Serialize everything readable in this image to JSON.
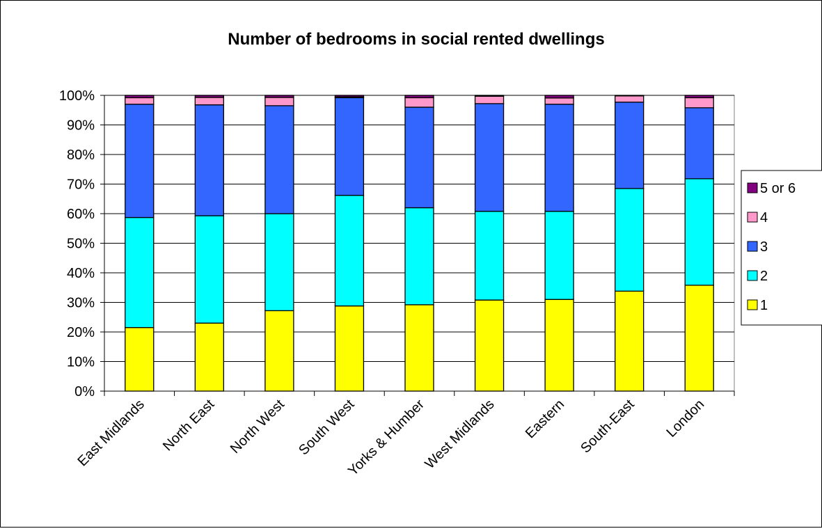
{
  "chart_data": {
    "type": "bar",
    "stacked": "percent",
    "title": "Number of bedrooms in social rented dwellings",
    "xlabel": "",
    "ylabel": "",
    "ylim": [
      0,
      100
    ],
    "y_ticks": [
      "0%",
      "10%",
      "20%",
      "30%",
      "40%",
      "50%",
      "60%",
      "70%",
      "80%",
      "90%",
      "100%"
    ],
    "grid": true,
    "legend_position": "right",
    "categories": [
      "East Midlands",
      "North East",
      "North West",
      "South West",
      "Yorks & Humber",
      "West Midlands",
      "Eastern",
      "South-East",
      "London"
    ],
    "series": [
      {
        "name": "1",
        "color": "#ffff00",
        "values": [
          21.5,
          23,
          27.2,
          28.8,
          29.2,
          30.8,
          31,
          33.8,
          35.8
        ]
      },
      {
        "name": "2",
        "color": "#00ffff",
        "values": [
          37.2,
          36.3,
          32.8,
          37.4,
          32.8,
          30,
          29.8,
          34.7,
          36
        ]
      },
      {
        "name": "3",
        "color": "#3366ff",
        "values": [
          38.3,
          37.5,
          36.5,
          33,
          34,
          36.4,
          36.2,
          29.2,
          24
        ]
      },
      {
        "name": "4",
        "color": "#ff99cc",
        "values": [
          2.2,
          2.5,
          2.8,
          0.3,
          3.2,
          2.5,
          2.1,
          2.1,
          3.4
        ]
      },
      {
        "name": "5 or 6",
        "color": "#800080",
        "values": [
          0.8,
          0.7,
          0.7,
          0.5,
          0.8,
          0.3,
          0.9,
          0.2,
          0.8
        ]
      }
    ]
  }
}
